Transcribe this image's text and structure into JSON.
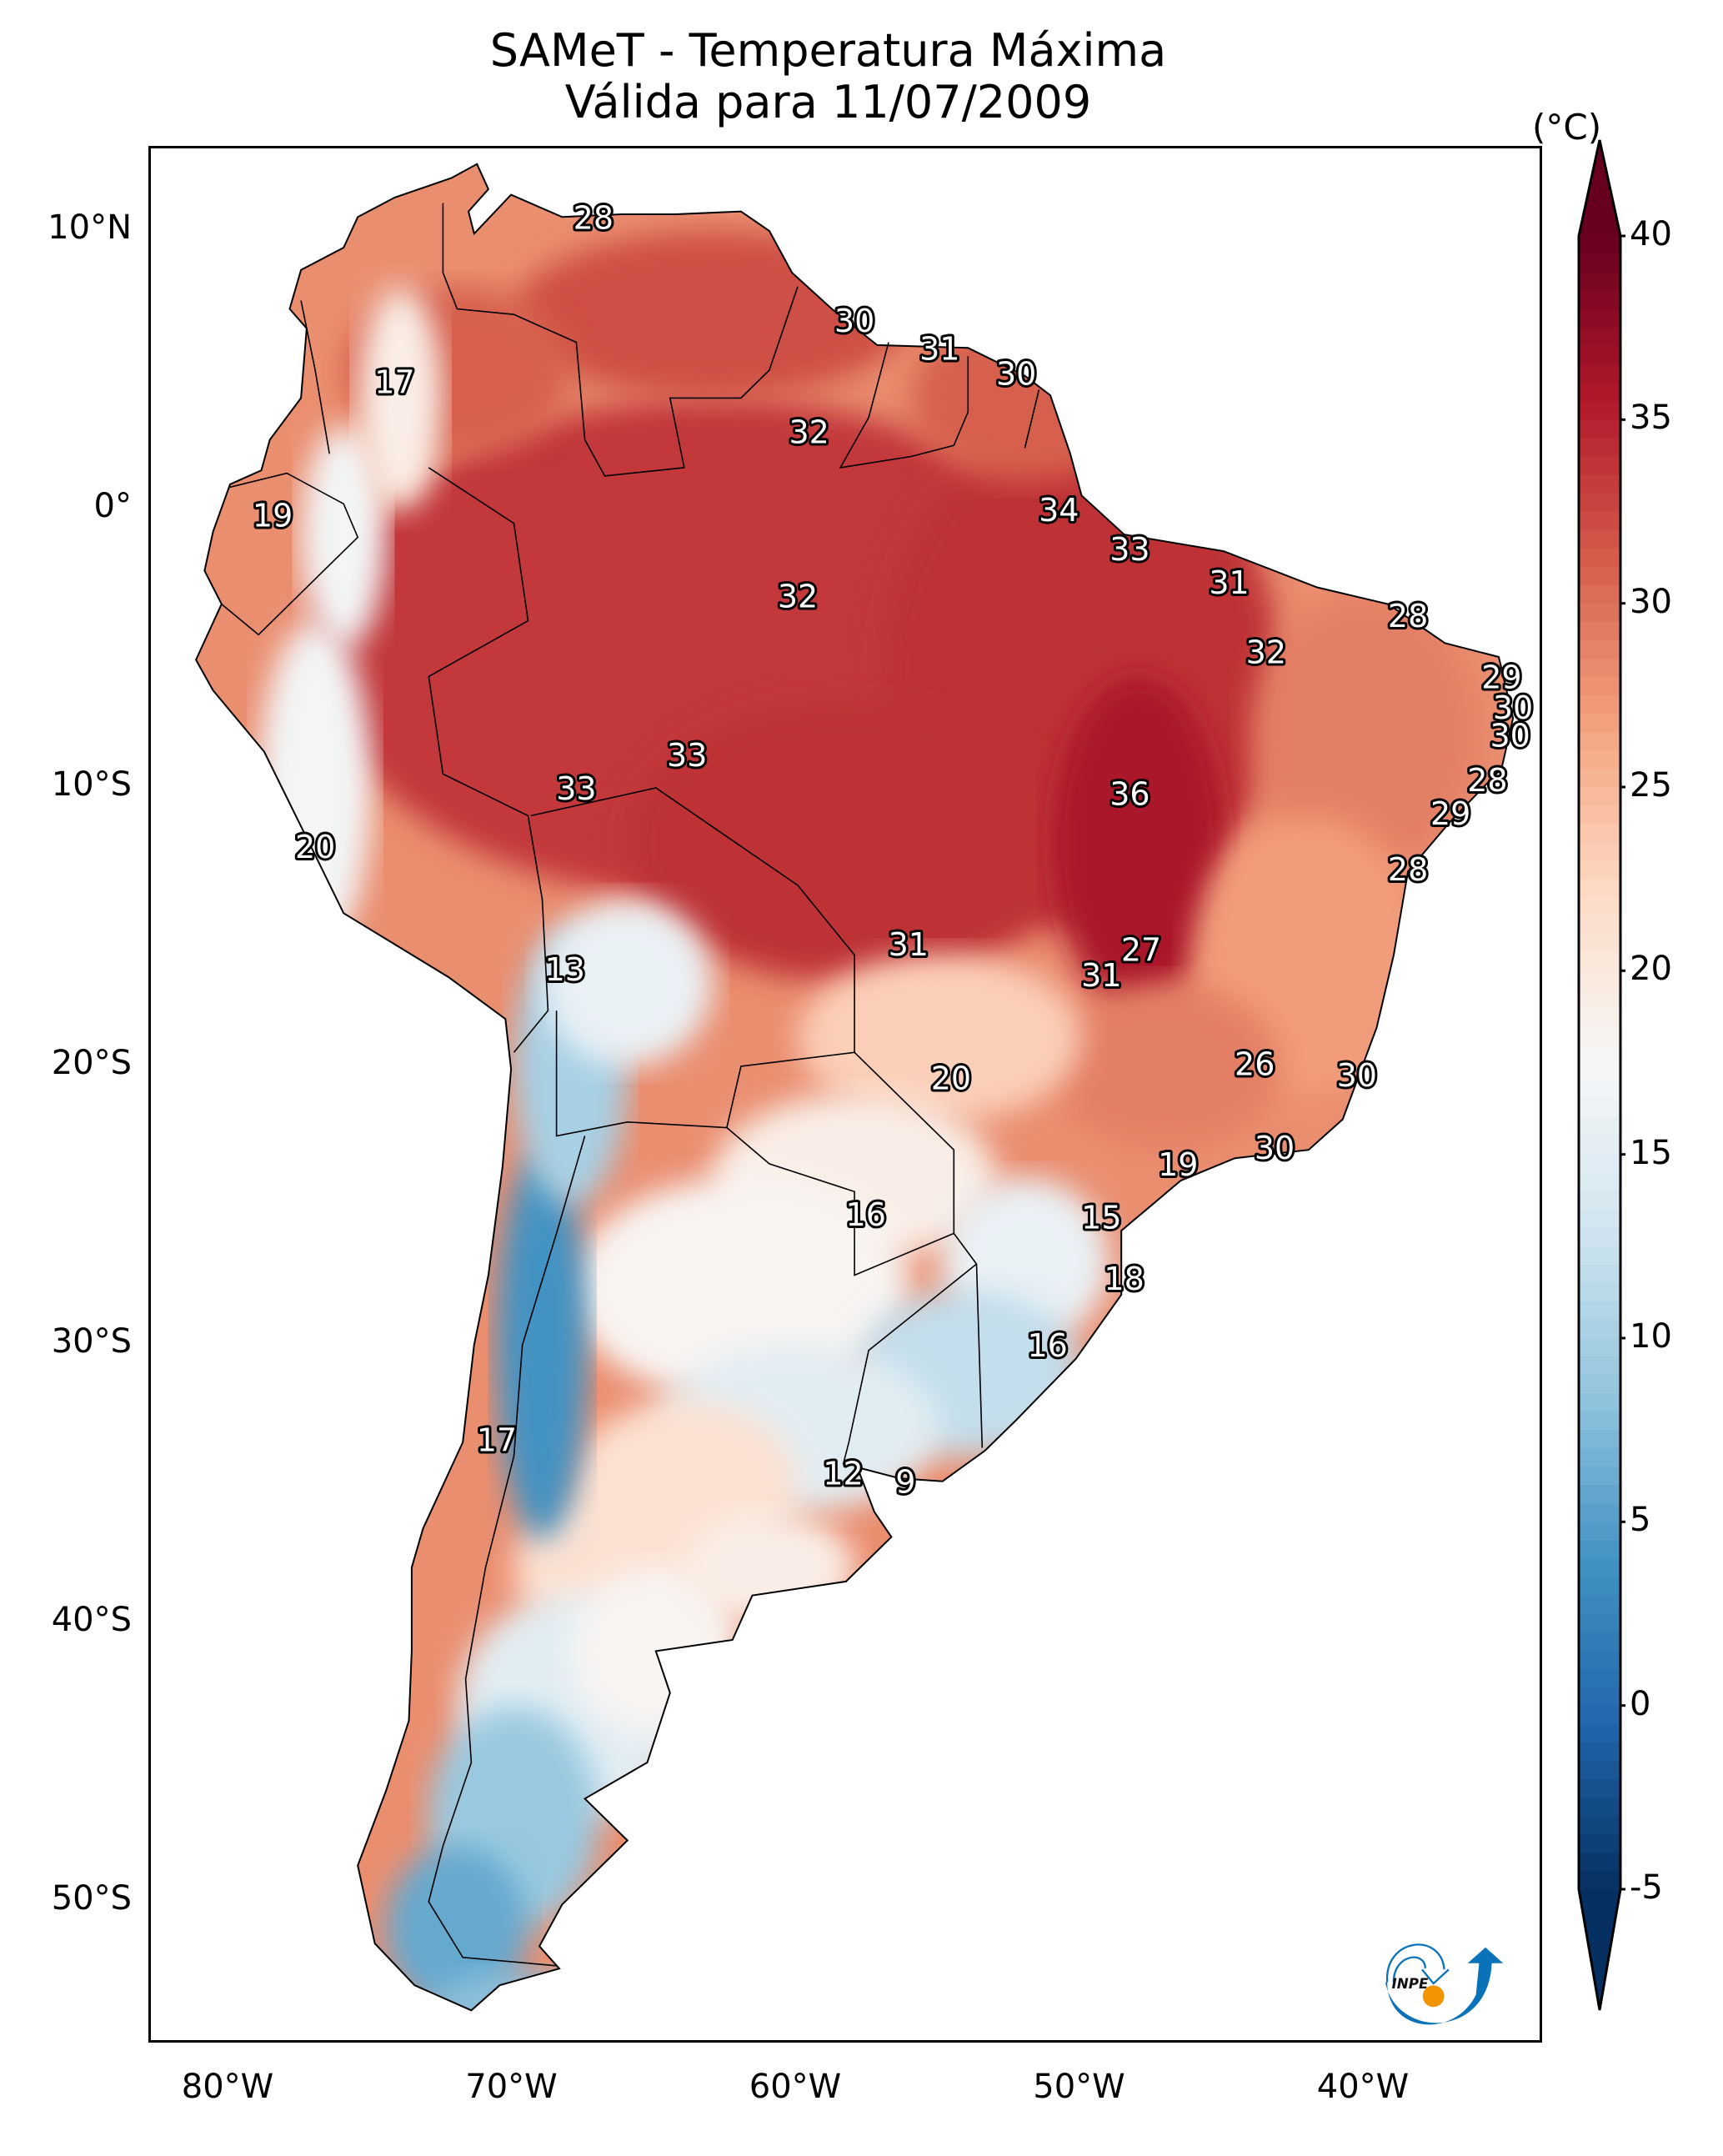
{
  "title": {
    "line1": "SAMeT - Temperatura Máxima",
    "line2": "Válida para 11/07/2009"
  },
  "chart_data": {
    "type": "heatmap",
    "title": "SAMeT - Temperatura Máxima",
    "subtitle": "Válida para 11/07/2009",
    "xlabel": "",
    "ylabel": "",
    "x_range_lon": [
      -83,
      -33
    ],
    "y_range_lat": [
      13,
      -56
    ],
    "x_ticks": [
      "80°W",
      "70°W",
      "60°W",
      "50°W",
      "40°W"
    ],
    "x_tick_values": [
      -80,
      -70,
      -60,
      -50,
      -40
    ],
    "y_ticks": [
      "10°N",
      "0°",
      "10°S",
      "20°S",
      "30°S",
      "40°S",
      "50°S"
    ],
    "y_tick_values": [
      10,
      0,
      -10,
      -20,
      -30,
      -40,
      -50
    ],
    "colorbar": {
      "unit_label": "(°C)",
      "min": -5,
      "max": 40,
      "ticks": [
        -5,
        0,
        5,
        10,
        15,
        20,
        25,
        30,
        35,
        40
      ],
      "tick_labels": [
        "-5",
        "0",
        "5",
        "10",
        "15",
        "20",
        "25",
        "30",
        "35",
        "40"
      ],
      "extend": "both",
      "colormap": "RdBu_r",
      "stops": [
        "#053061",
        "#2166ac",
        "#4393c3",
        "#92c5de",
        "#d1e5f0",
        "#f7f7f7",
        "#fddbc7",
        "#f4a582",
        "#d6604d",
        "#b2182b",
        "#67001f"
      ]
    },
    "station_labels": [
      {
        "value": 28,
        "lon": -67.2,
        "lat": 10.5
      },
      {
        "value": 30,
        "lon": -58.0,
        "lat": 6.8
      },
      {
        "value": 31,
        "lon": -55.0,
        "lat": 5.8
      },
      {
        "value": 30,
        "lon": -52.3,
        "lat": 4.9
      },
      {
        "value": 32,
        "lon": -59.6,
        "lat": 2.8
      },
      {
        "value": 17,
        "lon": -74.2,
        "lat": 4.6
      },
      {
        "value": 19,
        "lon": -78.5,
        "lat": -0.2
      },
      {
        "value": 34,
        "lon": -50.8,
        "lat": 0.0
      },
      {
        "value": 33,
        "lon": -48.3,
        "lat": -1.4
      },
      {
        "value": 32,
        "lon": -60.0,
        "lat": -3.1
      },
      {
        "value": 31,
        "lon": -44.8,
        "lat": -2.6
      },
      {
        "value": 28,
        "lon": -38.5,
        "lat": -3.8
      },
      {
        "value": 32,
        "lon": -43.5,
        "lat": -5.1
      },
      {
        "value": 29,
        "lon": -35.2,
        "lat": -6.0
      },
      {
        "value": 30,
        "lon": -34.8,
        "lat": -7.1
      },
      {
        "value": 30,
        "lon": -34.9,
        "lat": -8.1
      },
      {
        "value": 33,
        "lon": -63.9,
        "lat": -8.8
      },
      {
        "value": 33,
        "lon": -67.8,
        "lat": -10.0
      },
      {
        "value": 36,
        "lon": -48.3,
        "lat": -10.2
      },
      {
        "value": 28,
        "lon": -35.7,
        "lat": -9.7
      },
      {
        "value": 29,
        "lon": -37.0,
        "lat": -10.9
      },
      {
        "value": 20,
        "lon": -77.0,
        "lat": -12.1
      },
      {
        "value": 28,
        "lon": -38.5,
        "lat": -12.9
      },
      {
        "value": 13,
        "lon": -68.2,
        "lat": -16.5
      },
      {
        "value": 31,
        "lon": -56.1,
        "lat": -15.6
      },
      {
        "value": 27,
        "lon": -47.9,
        "lat": -15.8
      },
      {
        "value": 31,
        "lon": -49.3,
        "lat": -16.7
      },
      {
        "value": 20,
        "lon": -54.6,
        "lat": -20.4
      },
      {
        "value": 26,
        "lon": -43.9,
        "lat": -19.9
      },
      {
        "value": 30,
        "lon": -40.3,
        "lat": -20.3
      },
      {
        "value": 19,
        "lon": -46.6,
        "lat": -23.5
      },
      {
        "value": 30,
        "lon": -43.2,
        "lat": -22.9
      },
      {
        "value": 16,
        "lon": -57.6,
        "lat": -25.3
      },
      {
        "value": 15,
        "lon": -49.3,
        "lat": -25.4
      },
      {
        "value": 18,
        "lon": -48.5,
        "lat": -27.6
      },
      {
        "value": 16,
        "lon": -51.2,
        "lat": -30.0
      },
      {
        "value": 17,
        "lon": -70.6,
        "lat": -33.4
      },
      {
        "value": 12,
        "lon": -58.4,
        "lat": -34.6
      },
      {
        "value": 9,
        "lon": -56.2,
        "lat": -34.9
      }
    ]
  },
  "logo": {
    "text": "INPE",
    "colors": {
      "blue": "#0a72b8",
      "orange": "#f29400"
    }
  }
}
